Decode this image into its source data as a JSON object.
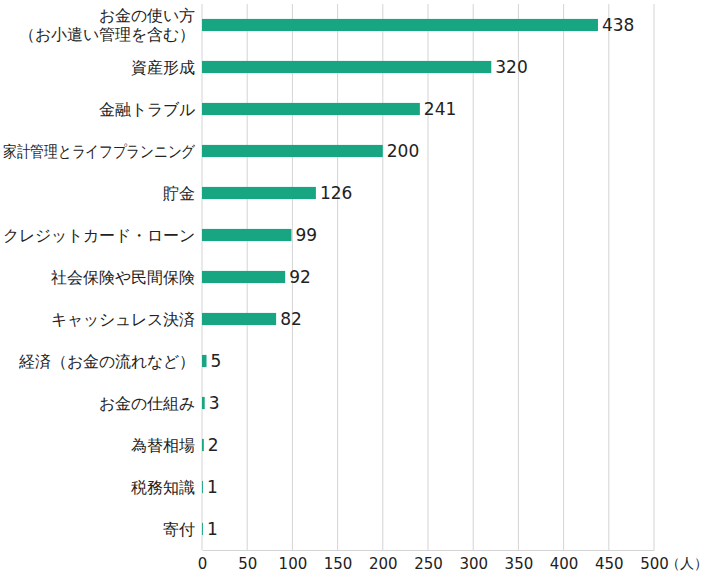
{
  "chart_data": {
    "type": "bar",
    "orientation": "horizontal",
    "categories": [
      "お金の使い方\n（お小遣い管理を含む）",
      "資産形成",
      "金融トラブル",
      "家計管理とライフプランニング",
      "貯金",
      "クレジットカード・ローン",
      "社会保険や民間保険",
      "キャッシュレス決済",
      "経済（お金の流れなど）",
      "お金の仕組み",
      "為替相場",
      "税務知識",
      "寄付"
    ],
    "values": [
      438,
      320,
      241,
      200,
      126,
      99,
      92,
      82,
      5,
      3,
      2,
      1,
      1
    ],
    "color": "#18a682",
    "x_label": "（人）",
    "xlim": [
      0,
      500
    ],
    "xticks": [
      0,
      50,
      100,
      150,
      200,
      250,
      300,
      350,
      400,
      450,
      500
    ],
    "grid": true,
    "data_labels": true
  }
}
